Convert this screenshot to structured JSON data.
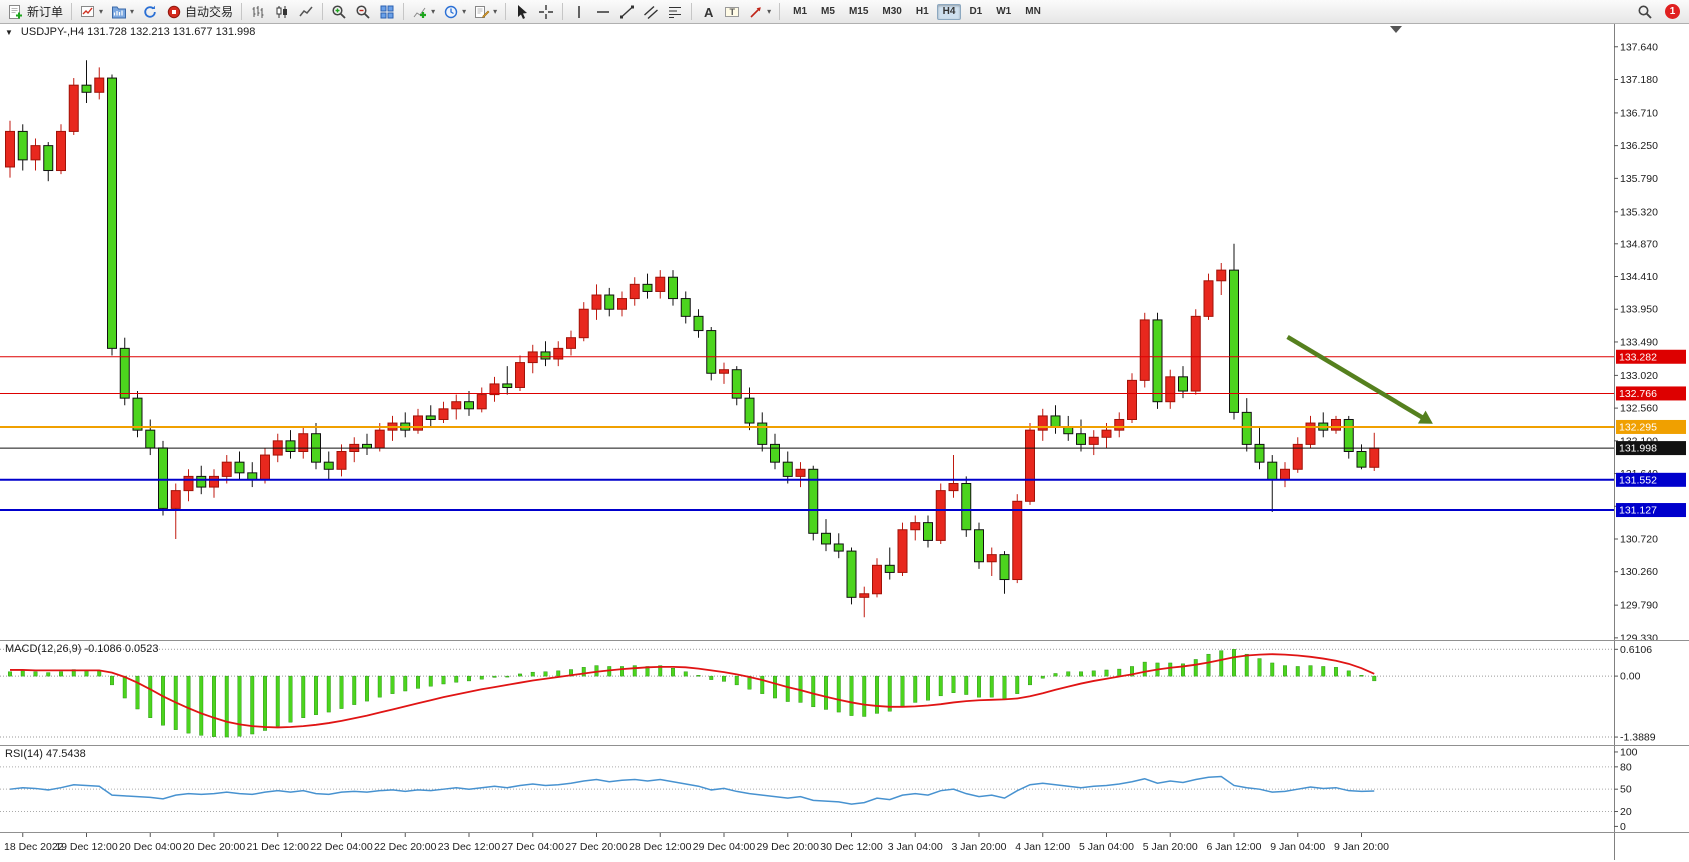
{
  "toolbar": {
    "new_order_label": "新订单",
    "autotrade_label": "自动交易",
    "timeframes": [
      "M1",
      "M5",
      "M15",
      "M30",
      "H1",
      "H4",
      "D1",
      "W1",
      "MN"
    ],
    "active_timeframe": "H4",
    "notification_count": "1"
  },
  "icons": {
    "chevron_down": "▾",
    "collapse_triangle": "▼",
    "letter_a": "A",
    "letter_t": "T"
  },
  "chart": {
    "title": "USDJPY-,H4  131.728 132.213 131.677 131.998",
    "price_axis_labels": [
      "137.640",
      "137.180",
      "136.710",
      "136.250",
      "135.790",
      "135.320",
      "134.870",
      "134.410",
      "133.950",
      "133.490",
      "133.020",
      "132.560",
      "132.100",
      "131.640",
      "131.180",
      "130.720",
      "130.260",
      "129.790",
      "129.330"
    ],
    "levels": [
      {
        "price": 133.282,
        "label": "133.282",
        "color": "#dd0000",
        "width": 1
      },
      {
        "price": 132.766,
        "label": "132.766",
        "color": "#dd0000",
        "width": 1
      },
      {
        "price": 132.295,
        "label": "132.295",
        "color": "#f0a000",
        "width": 2
      },
      {
        "price": 131.552,
        "label": "131.552",
        "color": "#0000cc",
        "width": 2
      },
      {
        "price": 131.127,
        "label": "131.127",
        "color": "#0000cc",
        "width": 2
      }
    ],
    "current_price": {
      "price": 131.998,
      "label": "131.998",
      "color": "#111111"
    },
    "annotation_arrow": {
      "i1": 100.2,
      "p1": 133.56,
      "i2": 111.6,
      "p2": 132.34,
      "color": "#55801e"
    }
  },
  "chart_data": {
    "type": "candlestick",
    "symbol": "USDJPY-",
    "timeframe": "H4",
    "up_color": "#e8281e",
    "down_color": "#4cd41e",
    "ohlc": [
      [
        135.95,
        136.6,
        135.8,
        136.45
      ],
      [
        136.45,
        136.55,
        135.9,
        136.05
      ],
      [
        136.05,
        136.35,
        135.9,
        136.25
      ],
      [
        136.25,
        136.3,
        135.75,
        135.9
      ],
      [
        135.9,
        136.55,
        135.85,
        136.45
      ],
      [
        136.45,
        137.2,
        136.4,
        137.1
      ],
      [
        137.1,
        137.45,
        136.85,
        137.0
      ],
      [
        137.0,
        137.35,
        136.9,
        137.2
      ],
      [
        137.2,
        137.25,
        133.3,
        133.4
      ],
      [
        133.4,
        133.55,
        132.6,
        132.7
      ],
      [
        132.7,
        132.8,
        132.15,
        132.25
      ],
      [
        132.25,
        132.4,
        131.9,
        132.0
      ],
      [
        132.0,
        132.1,
        131.05,
        131.15
      ],
      [
        131.15,
        131.5,
        130.72,
        131.4
      ],
      [
        131.4,
        131.7,
        131.25,
        131.6
      ],
      [
        131.6,
        131.75,
        131.35,
        131.45
      ],
      [
        131.45,
        131.7,
        131.3,
        131.6
      ],
      [
        131.6,
        131.9,
        131.5,
        131.8
      ],
      [
        131.8,
        131.95,
        131.55,
        131.65
      ],
      [
        131.65,
        131.8,
        131.45,
        131.55
      ],
      [
        131.55,
        132.0,
        131.5,
        131.9
      ],
      [
        131.9,
        132.2,
        131.8,
        132.1
      ],
      [
        132.1,
        132.25,
        131.85,
        131.95
      ],
      [
        131.95,
        132.3,
        131.85,
        132.2
      ],
      [
        132.2,
        132.35,
        131.7,
        131.8
      ],
      [
        131.8,
        131.95,
        131.55,
        131.7
      ],
      [
        131.7,
        132.05,
        131.6,
        131.95
      ],
      [
        131.95,
        132.15,
        131.8,
        132.05
      ],
      [
        132.05,
        132.2,
        131.9,
        132.0
      ],
      [
        132.0,
        132.35,
        131.95,
        132.25
      ],
      [
        132.25,
        132.45,
        132.1,
        132.35
      ],
      [
        132.35,
        132.5,
        132.15,
        132.25
      ],
      [
        132.25,
        132.55,
        132.2,
        132.45
      ],
      [
        132.45,
        132.6,
        132.3,
        132.4
      ],
      [
        132.4,
        132.65,
        132.35,
        132.55
      ],
      [
        132.55,
        132.75,
        132.4,
        132.65
      ],
      [
        132.65,
        132.8,
        132.45,
        132.55
      ],
      [
        132.55,
        132.85,
        132.5,
        132.75
      ],
      [
        132.75,
        133.0,
        132.65,
        132.9
      ],
      [
        132.9,
        133.15,
        132.75,
        132.85
      ],
      [
        132.85,
        133.3,
        132.8,
        133.2
      ],
      [
        133.2,
        133.45,
        133.05,
        133.35
      ],
      [
        133.35,
        133.5,
        133.15,
        133.25
      ],
      [
        133.25,
        133.5,
        133.15,
        133.4
      ],
      [
        133.4,
        133.65,
        133.3,
        133.55
      ],
      [
        133.55,
        134.05,
        133.5,
        133.95
      ],
      [
        133.95,
        134.3,
        133.8,
        134.15
      ],
      [
        134.15,
        134.25,
        133.85,
        133.95
      ],
      [
        133.95,
        134.2,
        133.85,
        134.1
      ],
      [
        134.1,
        134.4,
        134.0,
        134.3
      ],
      [
        134.3,
        134.45,
        134.1,
        134.2
      ],
      [
        134.2,
        134.5,
        134.1,
        134.4
      ],
      [
        134.4,
        134.5,
        134.0,
        134.1
      ],
      [
        134.1,
        134.2,
        133.75,
        133.85
      ],
      [
        133.85,
        133.95,
        133.55,
        133.65
      ],
      [
        133.65,
        133.7,
        132.95,
        133.05
      ],
      [
        133.05,
        133.2,
        132.9,
        133.1
      ],
      [
        133.1,
        133.15,
        132.6,
        132.7
      ],
      [
        132.7,
        132.85,
        132.25,
        132.35
      ],
      [
        132.35,
        132.5,
        131.95,
        132.05
      ],
      [
        132.05,
        132.2,
        131.7,
        131.8
      ],
      [
        131.8,
        131.95,
        131.5,
        131.6
      ],
      [
        131.6,
        131.8,
        131.45,
        131.7
      ],
      [
        131.7,
        131.75,
        130.7,
        130.8
      ],
      [
        130.8,
        131.0,
        130.55,
        130.65
      ],
      [
        130.65,
        130.8,
        130.45,
        130.55
      ],
      [
        130.55,
        130.6,
        129.8,
        129.9
      ],
      [
        129.9,
        130.05,
        129.62,
        129.95
      ],
      [
        129.95,
        130.45,
        129.9,
        130.35
      ],
      [
        130.35,
        130.6,
        130.15,
        130.25
      ],
      [
        130.25,
        130.95,
        130.2,
        130.85
      ],
      [
        130.85,
        131.05,
        130.7,
        130.95
      ],
      [
        130.95,
        131.05,
        130.6,
        130.7
      ],
      [
        130.7,
        131.5,
        130.65,
        131.4
      ],
      [
        131.4,
        131.9,
        131.3,
        131.5
      ],
      [
        131.5,
        131.6,
        130.75,
        130.85
      ],
      [
        130.85,
        130.95,
        130.3,
        130.4
      ],
      [
        130.4,
        130.6,
        130.2,
        130.5
      ],
      [
        130.5,
        130.55,
        129.95,
        130.15
      ],
      [
        130.15,
        131.35,
        130.1,
        131.25
      ],
      [
        131.25,
        132.35,
        131.2,
        132.25
      ],
      [
        132.25,
        132.55,
        132.1,
        132.45
      ],
      [
        132.45,
        132.6,
        132.2,
        132.3
      ],
      [
        132.3,
        132.45,
        132.1,
        132.2
      ],
      [
        132.2,
        132.4,
        131.95,
        132.05
      ],
      [
        132.05,
        132.25,
        131.9,
        132.15
      ],
      [
        132.15,
        132.35,
        132.0,
        132.25
      ],
      [
        132.25,
        132.5,
        132.15,
        132.4
      ],
      [
        132.4,
        133.05,
        132.35,
        132.95
      ],
      [
        132.95,
        133.9,
        132.85,
        133.8
      ],
      [
        133.8,
        133.9,
        132.55,
        132.65
      ],
      [
        132.65,
        133.1,
        132.55,
        133.0
      ],
      [
        133.0,
        133.15,
        132.7,
        132.8
      ],
      [
        132.8,
        133.95,
        132.75,
        133.85
      ],
      [
        133.85,
        134.45,
        133.8,
        134.35
      ],
      [
        134.35,
        134.6,
        134.15,
        134.5
      ],
      [
        134.5,
        134.87,
        132.4,
        132.5
      ],
      [
        132.5,
        132.7,
        131.95,
        132.05
      ],
      [
        132.05,
        132.3,
        131.7,
        131.8
      ],
      [
        131.8,
        131.9,
        131.1,
        131.55
      ],
      [
        131.55,
        131.8,
        131.45,
        131.7
      ],
      [
        131.7,
        132.15,
        131.65,
        132.05
      ],
      [
        132.05,
        132.45,
        132.0,
        132.35
      ],
      [
        132.35,
        132.5,
        132.15,
        132.25
      ],
      [
        132.25,
        132.45,
        132.2,
        132.4
      ],
      [
        132.4,
        132.45,
        131.85,
        131.95
      ],
      [
        131.95,
        132.05,
        131.7,
        131.73
      ],
      [
        131.728,
        132.213,
        131.677,
        131.998
      ]
    ],
    "macd": {
      "label": "MACD(12,26,9) -0.1086 0.0523",
      "axis_labels": [
        "0.6106",
        "0.00",
        "-1.3889"
      ],
      "hist_color": "#4cd41e",
      "signal_color": "#e01414",
      "hist": [
        0.1,
        0.12,
        0.1,
        0.08,
        0.1,
        0.15,
        0.14,
        0.12,
        -0.2,
        -0.5,
        -0.75,
        -0.95,
        -1.12,
        -1.22,
        -1.3,
        -1.35,
        -1.38,
        -1.389,
        -1.37,
        -1.32,
        -1.24,
        -1.14,
        -1.05,
        -0.95,
        -0.88,
        -0.82,
        -0.74,
        -0.65,
        -0.57,
        -0.48,
        -0.4,
        -0.34,
        -0.28,
        -0.23,
        -0.18,
        -0.14,
        -0.11,
        -0.07,
        -0.03,
        0.0,
        0.05,
        0.09,
        0.1,
        0.12,
        0.15,
        0.2,
        0.24,
        0.22,
        0.22,
        0.24,
        0.22,
        0.24,
        0.18,
        0.1,
        0.02,
        -0.08,
        -0.12,
        -0.2,
        -0.3,
        -0.4,
        -0.5,
        -0.58,
        -0.6,
        -0.7,
        -0.76,
        -0.82,
        -0.9,
        -0.92,
        -0.85,
        -0.8,
        -0.7,
        -0.6,
        -0.55,
        -0.45,
        -0.38,
        -0.42,
        -0.48,
        -0.48,
        -0.52,
        -0.4,
        -0.2,
        -0.05,
        0.06,
        0.1,
        0.1,
        0.12,
        0.14,
        0.16,
        0.22,
        0.32,
        0.3,
        0.3,
        0.28,
        0.38,
        0.5,
        0.58,
        0.61,
        0.5,
        0.4,
        0.3,
        0.24,
        0.22,
        0.24,
        0.22,
        0.2,
        0.12,
        0.02,
        -0.1086
      ],
      "signal": [
        0.14,
        0.14,
        0.13,
        0.13,
        0.13,
        0.13,
        0.13,
        0.13,
        0.08,
        -0.02,
        -0.15,
        -0.3,
        -0.46,
        -0.6,
        -0.73,
        -0.85,
        -0.95,
        -1.04,
        -1.1,
        -1.14,
        -1.16,
        -1.17,
        -1.16,
        -1.14,
        -1.11,
        -1.07,
        -1.02,
        -0.96,
        -0.9,
        -0.83,
        -0.76,
        -0.69,
        -0.62,
        -0.55,
        -0.48,
        -0.42,
        -0.36,
        -0.3,
        -0.25,
        -0.2,
        -0.15,
        -0.1,
        -0.06,
        -0.02,
        0.02,
        0.06,
        0.1,
        0.13,
        0.16,
        0.18,
        0.2,
        0.21,
        0.21,
        0.2,
        0.17,
        0.13,
        0.09,
        0.04,
        -0.02,
        -0.09,
        -0.17,
        -0.25,
        -0.32,
        -0.4,
        -0.47,
        -0.54,
        -0.6,
        -0.65,
        -0.68,
        -0.7,
        -0.7,
        -0.69,
        -0.67,
        -0.64,
        -0.6,
        -0.57,
        -0.55,
        -0.54,
        -0.53,
        -0.51,
        -0.46,
        -0.39,
        -0.31,
        -0.24,
        -0.17,
        -0.11,
        -0.06,
        -0.01,
        0.04,
        0.1,
        0.15,
        0.19,
        0.22,
        0.26,
        0.31,
        0.37,
        0.43,
        0.47,
        0.49,
        0.5,
        0.49,
        0.47,
        0.44,
        0.4,
        0.35,
        0.28,
        0.18,
        0.0523
      ]
    },
    "rsi": {
      "label": "RSI(14) 47.5438",
      "axis_labels": [
        "100",
        "80",
        "50",
        "20",
        "0"
      ],
      "line_color": "#4792d0",
      "values": [
        50,
        52,
        51,
        49,
        52,
        56,
        55,
        54,
        42,
        41,
        40,
        39,
        37,
        42,
        44,
        43,
        44,
        46,
        44,
        43,
        46,
        48,
        46,
        48,
        44,
        43,
        46,
        47,
        46,
        48,
        49,
        47,
        49,
        48,
        50,
        52,
        50,
        52,
        54,
        52,
        55,
        57,
        55,
        56,
        58,
        61,
        63,
        60,
        62,
        63,
        61,
        63,
        60,
        57,
        54,
        49,
        51,
        47,
        44,
        42,
        40,
        38,
        40,
        35,
        34,
        33,
        30,
        32,
        38,
        36,
        42,
        44,
        42,
        48,
        50,
        44,
        40,
        42,
        38,
        48,
        56,
        58,
        56,
        54,
        52,
        54,
        55,
        57,
        60,
        64,
        58,
        61,
        59,
        63,
        66,
        67,
        55,
        52,
        50,
        46,
        47,
        50,
        53,
        51,
        52,
        48,
        47,
        47.54
      ]
    },
    "time_labels": [
      "18 Dec 2022",
      "19 Dec 12:00",
      "20 Dec 04:00",
      "20 Dec 20:00",
      "21 Dec 12:00",
      "22 Dec 04:00",
      "22 Dec 20:00",
      "23 Dec 12:00",
      "27 Dec 04:00",
      "27 Dec 20:00",
      "28 Dec 12:00",
      "29 Dec 04:00",
      "29 Dec 20:00",
      "30 Dec 12:00",
      "3 Jan 04:00",
      "3 Jan 20:00",
      "4 Jan 12:00",
      "5 Jan 04:00",
      "5 Jan 20:00",
      "6 Jan 12:00",
      "9 Jan 04:00",
      "9 Jan 20:00"
    ]
  }
}
